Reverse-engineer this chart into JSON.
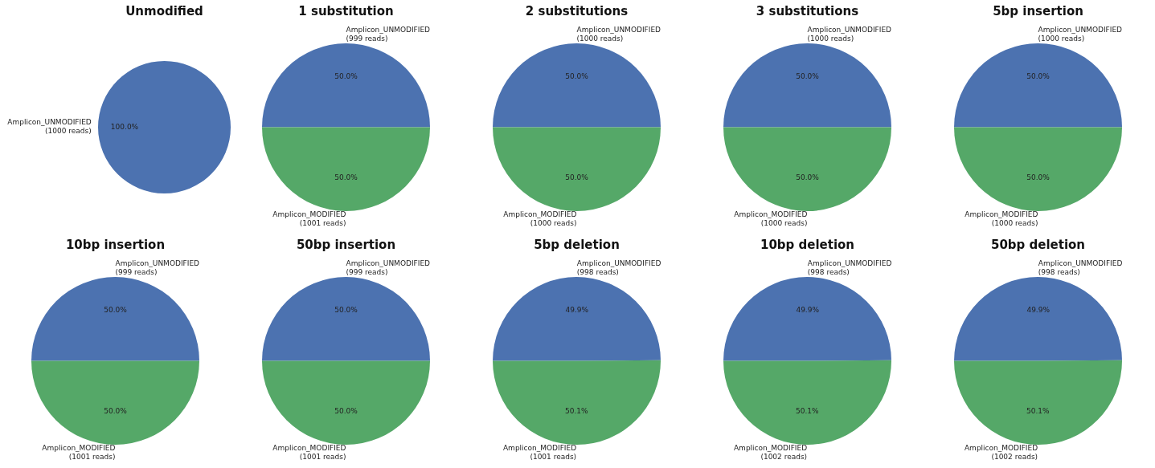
{
  "chart_data": [
    {
      "type": "pie",
      "title": "Unmodified",
      "categories": [
        "Amplicon_UNMODIFIED (1000 reads)"
      ],
      "values": [
        100.0
      ],
      "colors": [
        "#4c72b0"
      ],
      "value_labels": [
        "100.0%"
      ]
    },
    {
      "type": "pie",
      "title": "1 substitution",
      "categories": [
        "Amplicon_UNMODIFIED (999 reads)",
        "Amplicon_MODIFIED (1001 reads)"
      ],
      "values": [
        50.0,
        50.0
      ],
      "colors": [
        "#4c72b0",
        "#55a868"
      ],
      "value_labels": [
        "50.0%",
        "50.0%"
      ]
    },
    {
      "type": "pie",
      "title": "2 substitutions",
      "categories": [
        "Amplicon_UNMODIFIED (1000 reads)",
        "Amplicon_MODIFIED (1000 reads)"
      ],
      "values": [
        50.0,
        50.0
      ],
      "colors": [
        "#4c72b0",
        "#55a868"
      ],
      "value_labels": [
        "50.0%",
        "50.0%"
      ]
    },
    {
      "type": "pie",
      "title": "3 substitutions",
      "categories": [
        "Amplicon_UNMODIFIED (1000 reads)",
        "Amplicon_MODIFIED (1000 reads)"
      ],
      "values": [
        50.0,
        50.0
      ],
      "colors": [
        "#4c72b0",
        "#55a868"
      ],
      "value_labels": [
        "50.0%",
        "50.0%"
      ]
    },
    {
      "type": "pie",
      "title": "5bp insertion",
      "categories": [
        "Amplicon_UNMODIFIED (1000 reads)",
        "Amplicon_MODIFIED (1000 reads)"
      ],
      "values": [
        50.0,
        50.0
      ],
      "colors": [
        "#4c72b0",
        "#55a868"
      ],
      "value_labels": [
        "50.0%",
        "50.0%"
      ]
    },
    {
      "type": "pie",
      "title": "10bp insertion",
      "categories": [
        "Amplicon_UNMODIFIED (999 reads)",
        "Amplicon_MODIFIED (1001 reads)"
      ],
      "values": [
        50.0,
        50.0
      ],
      "colors": [
        "#4c72b0",
        "#55a868"
      ],
      "value_labels": [
        "50.0%",
        "50.0%"
      ]
    },
    {
      "type": "pie",
      "title": "50bp insertion",
      "categories": [
        "Amplicon_UNMODIFIED (999 reads)",
        "Amplicon_MODIFIED (1001 reads)"
      ],
      "values": [
        50.0,
        50.0
      ],
      "colors": [
        "#4c72b0",
        "#55a868"
      ],
      "value_labels": [
        "50.0%",
        "50.0%"
      ]
    },
    {
      "type": "pie",
      "title": "5bp deletion",
      "categories": [
        "Amplicon_UNMODIFIED (998 reads)",
        "Amplicon_MODIFIED (1001 reads)"
      ],
      "values": [
        49.9,
        50.1
      ],
      "colors": [
        "#4c72b0",
        "#55a868"
      ],
      "value_labels": [
        "49.9%",
        "50.1%"
      ]
    },
    {
      "type": "pie",
      "title": "10bp deletion",
      "categories": [
        "Amplicon_UNMODIFIED (998 reads)",
        "Amplicon_MODIFIED (1002 reads)"
      ],
      "values": [
        49.9,
        50.1
      ],
      "colors": [
        "#4c72b0",
        "#55a868"
      ],
      "value_labels": [
        "49.9%",
        "50.1%"
      ]
    },
    {
      "type": "pie",
      "title": "50bp deletion",
      "categories": [
        "Amplicon_UNMODIFIED (998 reads)",
        "Amplicon_MODIFIED (1002 reads)"
      ],
      "values": [
        49.9,
        50.1
      ],
      "colors": [
        "#4c72b0",
        "#55a868"
      ],
      "value_labels": [
        "49.9%",
        "50.1%"
      ]
    }
  ]
}
